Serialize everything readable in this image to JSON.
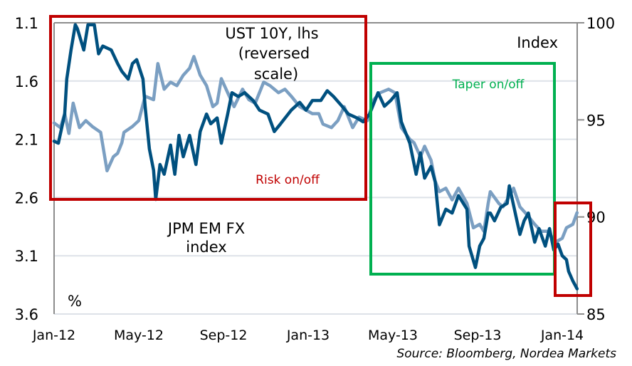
{
  "chart_data": {
    "type": "line",
    "x_unit": "months since Jan-12",
    "xlim": [
      0,
      24.7
    ],
    "x_ticks": [
      {
        "m": 0,
        "label": "Jan-12"
      },
      {
        "m": 4,
        "label": "May-12"
      },
      {
        "m": 8,
        "label": "Sep-12"
      },
      {
        "m": 12,
        "label": "Jan-13"
      },
      {
        "m": 16,
        "label": "May-13"
      },
      {
        "m": 20,
        "label": "Sep-13"
      },
      {
        "m": 24,
        "label": "Jan-14"
      }
    ],
    "left_axis": {
      "label": "%",
      "ylim": [
        1.1,
        3.6
      ],
      "reversed": true,
      "ticks": [
        "1.1",
        "1.6",
        "2.1",
        "2.6",
        "3.1",
        "3.6"
      ]
    },
    "right_axis": {
      "label": "Index",
      "ylim": [
        85,
        100
      ],
      "ticks": [
        "100",
        "95",
        "90",
        "85"
      ]
    },
    "grid": true,
    "series": [
      {
        "name": "UST 10Y, lhs (reversed scale)",
        "label_lines": [
          "UST 10Y, lhs",
          "(reversed",
          "scale)"
        ],
        "axis": "left",
        "color": "#7b9fc2",
        "x": [
          0.0,
          0.3,
          0.5,
          0.7,
          0.9,
          1.2,
          1.5,
          1.8,
          2.2,
          2.5,
          2.8,
          3.0,
          3.2,
          3.3,
          3.7,
          4.0,
          4.3,
          4.7,
          4.9,
          5.2,
          5.5,
          5.8,
          6.1,
          6.4,
          6.6,
          6.9,
          7.2,
          7.5,
          7.7,
          7.9,
          8.2,
          8.5,
          8.9,
          9.2,
          9.5,
          9.9,
          10.2,
          10.6,
          10.9,
          11.2,
          11.6,
          11.9,
          12.2,
          12.5,
          12.7,
          13.1,
          13.4,
          13.7,
          14.1,
          14.4,
          14.8,
          15.1,
          15.4,
          15.8,
          16.1,
          16.4,
          16.8,
          17.0,
          17.3,
          17.5,
          17.8,
          18.0,
          18.2,
          18.5,
          18.8,
          19.1,
          19.5,
          19.8,
          20.1,
          20.3,
          20.5,
          20.6,
          21.0,
          21.2,
          21.5,
          21.7,
          22.0,
          22.3,
          22.7,
          23.0,
          23.3,
          23.7,
          24.0,
          24.2,
          24.5,
          24.7
        ],
        "values": [
          1.96,
          2.0,
          1.88,
          2.05,
          1.79,
          2.0,
          1.94,
          1.99,
          2.04,
          2.37,
          2.25,
          2.22,
          2.13,
          2.04,
          1.99,
          1.94,
          1.73,
          1.76,
          1.45,
          1.67,
          1.61,
          1.64,
          1.55,
          1.49,
          1.39,
          1.55,
          1.64,
          1.82,
          1.79,
          1.58,
          1.7,
          1.82,
          1.67,
          1.76,
          1.79,
          1.61,
          1.64,
          1.7,
          1.67,
          1.73,
          1.82,
          1.85,
          1.88,
          1.88,
          1.97,
          2.0,
          1.94,
          1.82,
          2.0,
          1.91,
          1.94,
          1.76,
          1.7,
          1.67,
          1.7,
          2.0,
          2.1,
          2.13,
          2.25,
          2.16,
          2.28,
          2.46,
          2.55,
          2.52,
          2.62,
          2.52,
          2.65,
          2.86,
          2.83,
          2.89,
          2.65,
          2.55,
          2.65,
          2.68,
          2.59,
          2.52,
          2.68,
          2.74,
          2.83,
          2.89,
          2.89,
          2.98,
          2.95,
          2.86,
          2.83,
          2.73
        ]
      },
      {
        "name": "JPM EM FX index",
        "label_lines": [
          "JPM EM FX",
          "index"
        ],
        "axis": "right",
        "color": "#00507f",
        "x": [
          0.0,
          0.2,
          0.5,
          0.6,
          0.8,
          1.0,
          1.1,
          1.4,
          1.6,
          1.9,
          2.1,
          2.3,
          2.7,
          3.0,
          3.2,
          3.5,
          3.7,
          3.9,
          4.2,
          4.3,
          4.5,
          4.7,
          4.8,
          5.0,
          5.2,
          5.5,
          5.7,
          5.9,
          6.1,
          6.4,
          6.7,
          6.9,
          7.2,
          7.4,
          7.7,
          7.9,
          8.2,
          8.4,
          8.7,
          9.0,
          9.4,
          9.7,
          10.1,
          10.4,
          10.7,
          11.2,
          11.6,
          11.9,
          12.2,
          12.6,
          12.9,
          13.2,
          13.6,
          13.9,
          14.3,
          14.6,
          14.9,
          15.3,
          15.6,
          15.9,
          16.2,
          16.4,
          16.8,
          17.1,
          17.3,
          17.5,
          17.8,
          18.0,
          18.2,
          18.5,
          18.8,
          19.1,
          19.5,
          19.6,
          19.9,
          20.1,
          20.3,
          20.5,
          20.6,
          20.8,
          21.1,
          21.4,
          21.5,
          21.6,
          22.0,
          22.2,
          22.4,
          22.7,
          22.9,
          23.2,
          23.4,
          23.6,
          23.8,
          24.0,
          24.2,
          24.3,
          24.5,
          24.7
        ],
        "values": [
          93.9,
          93.8,
          95.3,
          97.1,
          98.6,
          99.9,
          99.7,
          98.6,
          99.9,
          99.9,
          98.4,
          98.8,
          98.6,
          97.9,
          97.5,
          97.1,
          97.9,
          98.1,
          97.1,
          95.7,
          93.5,
          92.4,
          90.9,
          92.7,
          92.2,
          93.7,
          92.2,
          94.2,
          93.1,
          94.2,
          92.7,
          94.4,
          95.3,
          94.8,
          95.1,
          93.8,
          95.3,
          96.4,
          96.2,
          96.4,
          96.0,
          95.5,
          95.3,
          94.4,
          94.8,
          95.5,
          95.9,
          95.5,
          96.0,
          96.0,
          96.5,
          96.2,
          95.7,
          95.3,
          95.1,
          94.9,
          95.3,
          96.4,
          95.7,
          96.0,
          96.4,
          94.9,
          93.8,
          92.2,
          93.3,
          92.0,
          92.6,
          91.8,
          89.6,
          90.4,
          90.2,
          91.1,
          90.4,
          88.5,
          87.4,
          88.5,
          88.9,
          90.2,
          90.2,
          89.8,
          90.5,
          90.7,
          91.6,
          91.1,
          89.1,
          89.8,
          90.2,
          88.7,
          89.4,
          88.5,
          89.4,
          88.3,
          88.6,
          88.0,
          87.8,
          87.2,
          86.7,
          86.3
        ]
      }
    ],
    "annotations": [
      {
        "text": "Risk on/off",
        "color": "#c00000",
        "from_m": 0,
        "to_m": 14.8
      },
      {
        "text": "Taper on/off",
        "color": "#00b050",
        "from_m": 15.0,
        "to_m": 23.7
      },
      {
        "text": "",
        "color": "#c00000",
        "from_m": 23.7,
        "to_m": 25.3
      }
    ],
    "source": "Source: Bloomberg, Nordea Markets"
  }
}
